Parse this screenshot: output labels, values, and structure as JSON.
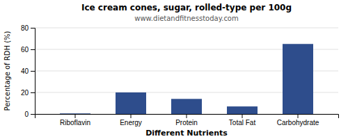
{
  "chart_data": {
    "type": "bar",
    "title": "Ice cream cones, sugar, rolled-type per 100g",
    "subtitle": "www.dietandfitnesstoday.com",
    "xlabel": "Different Nutrients",
    "ylabel": "Percentage of RDH (%)",
    "categories": [
      "Riboflavin",
      "Energy",
      "Protein",
      "Total Fat",
      "Carbohydrate"
    ],
    "values": [
      0.5,
      20,
      14,
      7,
      65
    ],
    "color": "#2e4d8c",
    "ylim": [
      0,
      80
    ],
    "yticks": [
      0,
      20,
      40,
      60,
      80
    ],
    "grid": true
  }
}
